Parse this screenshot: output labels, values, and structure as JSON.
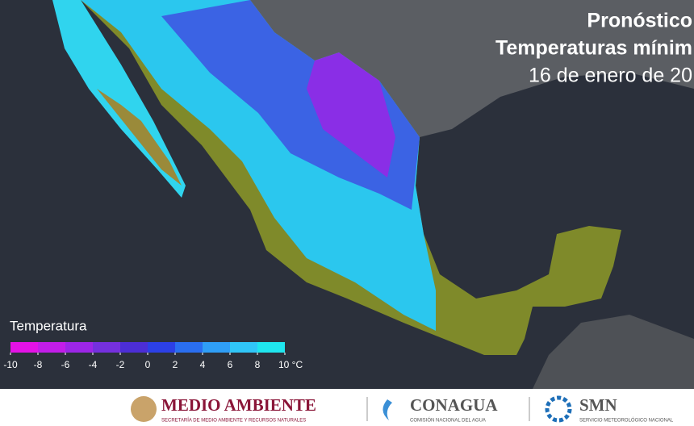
{
  "header": {
    "title": "Pronóstico",
    "subtitle": "Temperaturas mínim",
    "date": "16 de enero de 20"
  },
  "legend": {
    "title": "Temperatura",
    "ticks": [
      -10,
      -8,
      -6,
      -4,
      -2,
      0,
      2,
      4,
      6,
      8,
      {
        "value": 10,
        "label": "10 °C"
      }
    ],
    "colors": [
      "#e412e6",
      "#c21de8",
      "#9c26e6",
      "#7530de",
      "#4c2ed6",
      "#2c40e6",
      "#2a6ef0",
      "#2f9ef6",
      "#30c6f8",
      "#1fe6ee"
    ]
  },
  "footer": {
    "logos": [
      {
        "name": "MEDIO AMBIENTE",
        "subtitle": "SECRETARÍA DE MEDIO AMBIENTE Y RECURSOS NATURALES",
        "color": "#8a1538"
      },
      {
        "name": "CONAGUA",
        "subtitle": "COMISIÓN NACIONAL DEL AGUA",
        "color": "#555555"
      },
      {
        "name": "SMN",
        "subtitle": "SERVICIO METEOROLÓGICO NACIONAL",
        "color": "#555555"
      }
    ]
  }
}
